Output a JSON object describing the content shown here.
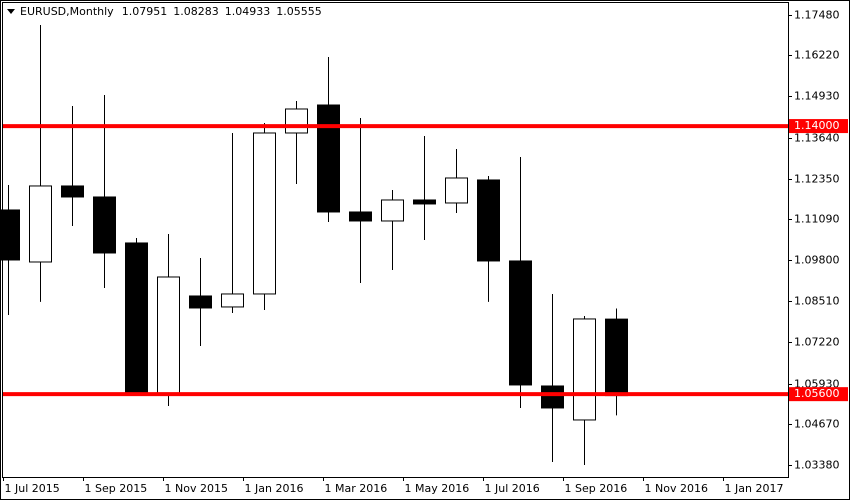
{
  "chart_data": {
    "type": "candlestick",
    "title": "EURUSD,Monthly",
    "x": [
      0,
      1,
      2,
      3,
      4,
      5,
      6,
      7,
      8,
      9,
      10,
      11,
      12,
      13,
      14,
      15,
      16,
      17,
      18,
      19
    ],
    "open": [
      1.11371,
      1.09741,
      1.12123,
      1.11778,
      1.10337,
      1.05637,
      1.08676,
      1.08332,
      1.08739,
      1.13783,
      1.1466,
      1.11308,
      1.11026,
      1.11684,
      1.1159,
      1.12311,
      1.09773,
      1.05856,
      1.04791,
      1.07951
    ],
    "high": [
      1.12154,
      1.17167,
      1.14629,
      1.14974,
      1.10494,
      1.10619,
      1.09867,
      1.13783,
      1.14096,
      1.14786,
      1.16164,
      1.14253,
      1.11997,
      1.13689,
      1.13282,
      1.12436,
      1.13031,
      1.08739,
      1.0805,
      1.08283
    ],
    "low": [
      1.08081,
      1.0849,
      1.10869,
      1.08927,
      1.05637,
      1.0523,
      1.0711,
      1.08144,
      1.08238,
      1.12185,
      1.10995,
      1.09084,
      1.09491,
      1.10431,
      1.11277,
      1.0849,
      1.05167,
      1.03475,
      1.0338,
      1.04933
    ],
    "close": [
      1.09804,
      1.12123,
      1.11778,
      1.10023,
      1.05637,
      1.09271,
      1.083,
      1.08739,
      1.13783,
      1.14535,
      1.11308,
      1.11026,
      1.11684,
      1.11559,
      1.12373,
      1.09773,
      1.05888,
      1.05167,
      1.07956,
      1.05555
    ],
    "up_color": "#ffffff",
    "down_color": "#000000",
    "xlim": [
      -0.16,
      24.38
    ],
    "xticks": [
      {
        "value": -0.15,
        "label": "1 Jul 2015"
      },
      {
        "value": 2.35,
        "label": "1 Sep 2015"
      },
      {
        "value": 4.85,
        "label": "1 Nov 2015"
      },
      {
        "value": 7.35,
        "label": "1 Jan 2016"
      },
      {
        "value": 9.85,
        "label": "1 Mar 2016"
      },
      {
        "value": 12.35,
        "label": "1 May 2016"
      },
      {
        "value": 14.85,
        "label": "1 Jul 2016"
      },
      {
        "value": 17.35,
        "label": "1 Sep 2016"
      },
      {
        "value": 19.85,
        "label": "1 Nov 2016"
      },
      {
        "value": 22.35,
        "label": "1 Jan 2017"
      }
    ],
    "ylim": [
      1.03004,
      1.17856
    ],
    "yticks": [
      {
        "value": 1.1748,
        "label": "1.17480"
      },
      {
        "value": 1.1622,
        "label": "1.16220"
      },
      {
        "value": 1.1493,
        "label": "1.14930"
      },
      {
        "value": 1.1364,
        "label": "1.13640"
      },
      {
        "value": 1.1235,
        "label": "1.12350"
      },
      {
        "value": 1.1109,
        "label": "1.11090"
      },
      {
        "value": 1.098,
        "label": "1.09800"
      },
      {
        "value": 1.0851,
        "label": "1.08510"
      },
      {
        "value": 1.0722,
        "label": "1.07220"
      },
      {
        "value": 1.0593,
        "label": "1.05930"
      },
      {
        "value": 1.0467,
        "label": "1.04670"
      },
      {
        "value": 1.0338,
        "label": "1.03380"
      }
    ],
    "hlines": [
      {
        "value": 1.14,
        "label": "1.14000",
        "color": "#ff0000"
      },
      {
        "value": 1.056,
        "label": "1.05600",
        "color": "#ff0000"
      }
    ]
  }
}
